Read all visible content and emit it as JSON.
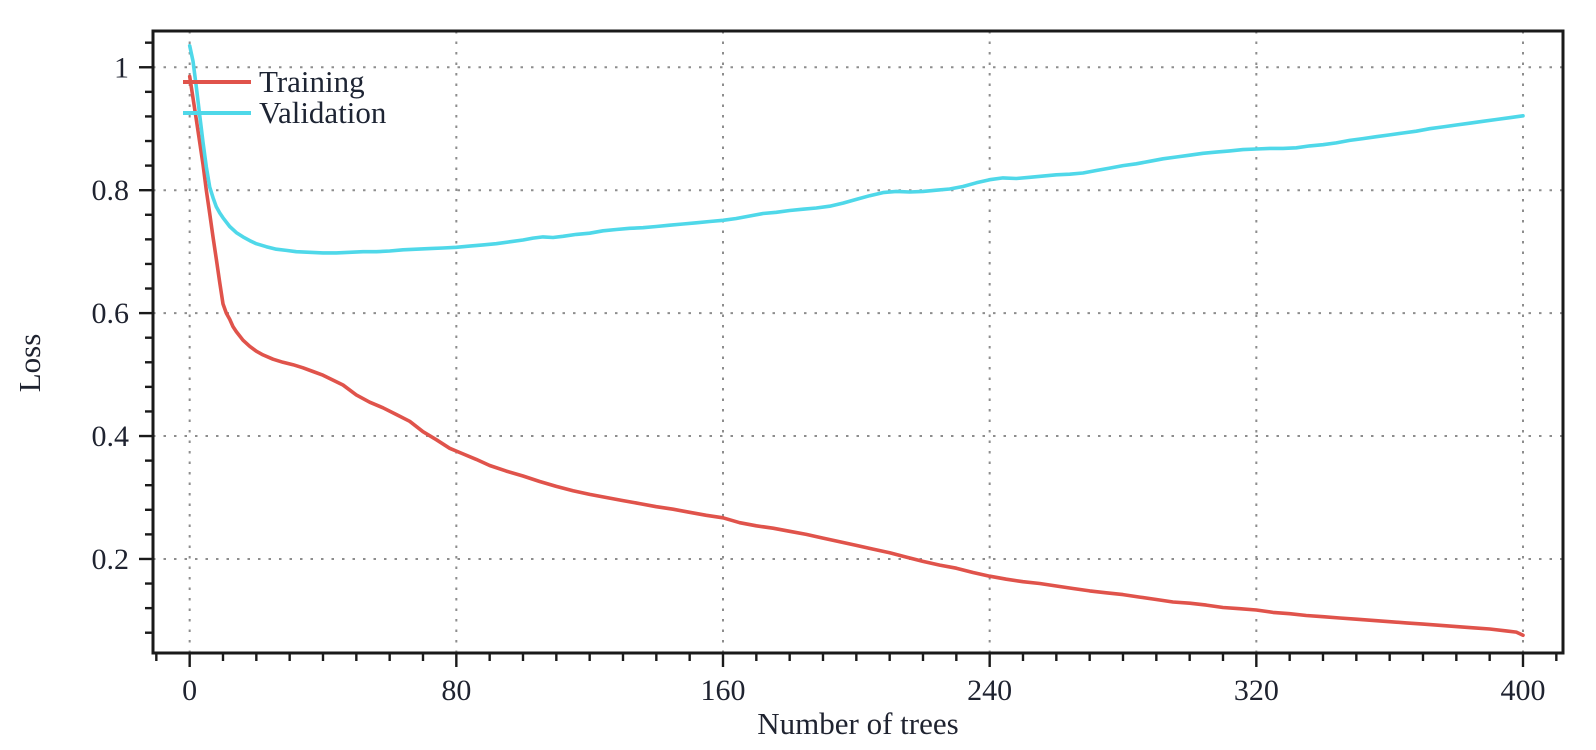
{
  "chart_data": {
    "type": "line",
    "title": "",
    "xlabel": "Number of trees",
    "ylabel": "Loss",
    "xlim": [
      -11,
      412
    ],
    "ylim": [
      0.047,
      1.059
    ],
    "x_major_ticks": [
      0,
      80,
      160,
      240,
      320,
      400
    ],
    "x_tick_labels": [
      "0",
      "80",
      "160",
      "240",
      "320",
      "400"
    ],
    "x_minor_step": 10,
    "y_major_ticks": [
      0.2,
      0.4,
      0.6,
      0.8,
      1.0
    ],
    "y_tick_labels": [
      "0.2",
      "0.4",
      "0.6",
      "0.8",
      "1"
    ],
    "y_minor_step": 0.04,
    "grid": {
      "style": "dotted",
      "color": "#8d8d8d",
      "at_x": [
        0,
        80,
        160,
        240,
        320,
        400
      ],
      "at_y": [
        0.2,
        0.4,
        0.6,
        0.8,
        1.0
      ]
    },
    "legend_position": "top-left-inside",
    "frame_color": "#1a1a1a",
    "series": [
      {
        "name": "Training",
        "color": "#e0534b",
        "points": [
          [
            0,
            0.985
          ],
          [
            1,
            0.95
          ],
          [
            2,
            0.915
          ],
          [
            3,
            0.878
          ],
          [
            4,
            0.842
          ],
          [
            5,
            0.8
          ],
          [
            6,
            0.762
          ],
          [
            7,
            0.724
          ],
          [
            8,
            0.688
          ],
          [
            9,
            0.65
          ],
          [
            10,
            0.615
          ],
          [
            11,
            0.6
          ],
          [
            12,
            0.59
          ],
          [
            13,
            0.578
          ],
          [
            14,
            0.57
          ],
          [
            16,
            0.556
          ],
          [
            18,
            0.546
          ],
          [
            20,
            0.538
          ],
          [
            22,
            0.532
          ],
          [
            25,
            0.525
          ],
          [
            28,
            0.52
          ],
          [
            31,
            0.516
          ],
          [
            34,
            0.511
          ],
          [
            37,
            0.505
          ],
          [
            40,
            0.499
          ],
          [
            43,
            0.491
          ],
          [
            46,
            0.483
          ],
          [
            50,
            0.467
          ],
          [
            54,
            0.455
          ],
          [
            58,
            0.446
          ],
          [
            62,
            0.435
          ],
          [
            66,
            0.424
          ],
          [
            70,
            0.407
          ],
          [
            74,
            0.394
          ],
          [
            78,
            0.38
          ],
          [
            82,
            0.371
          ],
          [
            86,
            0.362
          ],
          [
            90,
            0.352
          ],
          [
            95,
            0.343
          ],
          [
            100,
            0.335
          ],
          [
            105,
            0.326
          ],
          [
            110,
            0.318
          ],
          [
            115,
            0.311
          ],
          [
            120,
            0.305
          ],
          [
            125,
            0.3
          ],
          [
            130,
            0.295
          ],
          [
            135,
            0.29
          ],
          [
            140,
            0.285
          ],
          [
            145,
            0.281
          ],
          [
            150,
            0.276
          ],
          [
            155,
            0.271
          ],
          [
            160,
            0.267
          ],
          [
            165,
            0.259
          ],
          [
            170,
            0.254
          ],
          [
            175,
            0.25
          ],
          [
            180,
            0.245
          ],
          [
            185,
            0.24
          ],
          [
            190,
            0.234
          ],
          [
            195,
            0.228
          ],
          [
            200,
            0.222
          ],
          [
            205,
            0.216
          ],
          [
            210,
            0.21
          ],
          [
            215,
            0.203
          ],
          [
            220,
            0.196
          ],
          [
            225,
            0.19
          ],
          [
            230,
            0.185
          ],
          [
            235,
            0.178
          ],
          [
            240,
            0.172
          ],
          [
            245,
            0.167
          ],
          [
            250,
            0.163
          ],
          [
            255,
            0.16
          ],
          [
            260,
            0.156
          ],
          [
            265,
            0.152
          ],
          [
            270,
            0.148
          ],
          [
            275,
            0.145
          ],
          [
            280,
            0.142
          ],
          [
            285,
            0.138
          ],
          [
            290,
            0.134
          ],
          [
            295,
            0.13
          ],
          [
            300,
            0.128
          ],
          [
            305,
            0.125
          ],
          [
            310,
            0.121
          ],
          [
            315,
            0.119
          ],
          [
            320,
            0.117
          ],
          [
            325,
            0.113
          ],
          [
            330,
            0.111
          ],
          [
            335,
            0.108
          ],
          [
            340,
            0.106
          ],
          [
            345,
            0.104
          ],
          [
            350,
            0.102
          ],
          [
            355,
            0.1
          ],
          [
            360,
            0.098
          ],
          [
            365,
            0.096
          ],
          [
            370,
            0.094
          ],
          [
            375,
            0.092
          ],
          [
            380,
            0.09
          ],
          [
            385,
            0.088
          ],
          [
            390,
            0.086
          ],
          [
            395,
            0.083
          ],
          [
            398,
            0.081
          ],
          [
            400,
            0.076
          ]
        ]
      },
      {
        "name": "Validation",
        "color": "#4fd8e9",
        "points": [
          [
            0,
            1.035
          ],
          [
            1,
            1.01
          ],
          [
            2,
            0.968
          ],
          [
            3,
            0.922
          ],
          [
            4,
            0.878
          ],
          [
            5,
            0.838
          ],
          [
            6,
            0.805
          ],
          [
            7,
            0.788
          ],
          [
            8,
            0.773
          ],
          [
            9,
            0.763
          ],
          [
            10,
            0.755
          ],
          [
            12,
            0.741
          ],
          [
            14,
            0.731
          ],
          [
            16,
            0.724
          ],
          [
            18,
            0.718
          ],
          [
            20,
            0.713
          ],
          [
            23,
            0.708
          ],
          [
            26,
            0.704
          ],
          [
            29,
            0.702
          ],
          [
            32,
            0.7
          ],
          [
            36,
            0.699
          ],
          [
            40,
            0.698
          ],
          [
            44,
            0.698
          ],
          [
            48,
            0.699
          ],
          [
            52,
            0.7
          ],
          [
            56,
            0.7
          ],
          [
            60,
            0.701
          ],
          [
            64,
            0.703
          ],
          [
            68,
            0.704
          ],
          [
            72,
            0.705
          ],
          [
            76,
            0.706
          ],
          [
            80,
            0.707
          ],
          [
            84,
            0.709
          ],
          [
            88,
            0.711
          ],
          [
            92,
            0.713
          ],
          [
            96,
            0.716
          ],
          [
            100,
            0.719
          ],
          [
            103,
            0.722
          ],
          [
            106,
            0.724
          ],
          [
            109,
            0.723
          ],
          [
            112,
            0.725
          ],
          [
            116,
            0.728
          ],
          [
            120,
            0.73
          ],
          [
            124,
            0.734
          ],
          [
            128,
            0.736
          ],
          [
            132,
            0.738
          ],
          [
            136,
            0.739
          ],
          [
            140,
            0.741
          ],
          [
            144,
            0.743
          ],
          [
            148,
            0.745
          ],
          [
            152,
            0.747
          ],
          [
            156,
            0.749
          ],
          [
            160,
            0.751
          ],
          [
            164,
            0.754
          ],
          [
            168,
            0.758
          ],
          [
            172,
            0.762
          ],
          [
            176,
            0.764
          ],
          [
            180,
            0.767
          ],
          [
            184,
            0.769
          ],
          [
            188,
            0.771
          ],
          [
            192,
            0.774
          ],
          [
            196,
            0.779
          ],
          [
            200,
            0.785
          ],
          [
            204,
            0.791
          ],
          [
            208,
            0.796
          ],
          [
            212,
            0.798
          ],
          [
            216,
            0.797
          ],
          [
            220,
            0.798
          ],
          [
            224,
            0.8
          ],
          [
            228,
            0.802
          ],
          [
            232,
            0.806
          ],
          [
            236,
            0.812
          ],
          [
            240,
            0.817
          ],
          [
            244,
            0.82
          ],
          [
            248,
            0.819
          ],
          [
            252,
            0.821
          ],
          [
            256,
            0.823
          ],
          [
            260,
            0.825
          ],
          [
            264,
            0.826
          ],
          [
            268,
            0.828
          ],
          [
            272,
            0.832
          ],
          [
            276,
            0.836
          ],
          [
            280,
            0.84
          ],
          [
            284,
            0.843
          ],
          [
            288,
            0.847
          ],
          [
            292,
            0.851
          ],
          [
            296,
            0.854
          ],
          [
            300,
            0.857
          ],
          [
            304,
            0.86
          ],
          [
            308,
            0.862
          ],
          [
            312,
            0.864
          ],
          [
            316,
            0.866
          ],
          [
            320,
            0.867
          ],
          [
            324,
            0.868
          ],
          [
            328,
            0.868
          ],
          [
            332,
            0.869
          ],
          [
            336,
            0.872
          ],
          [
            340,
            0.874
          ],
          [
            344,
            0.877
          ],
          [
            348,
            0.881
          ],
          [
            352,
            0.884
          ],
          [
            356,
            0.887
          ],
          [
            360,
            0.89
          ],
          [
            364,
            0.893
          ],
          [
            368,
            0.896
          ],
          [
            372,
            0.9
          ],
          [
            376,
            0.903
          ],
          [
            380,
            0.906
          ],
          [
            384,
            0.909
          ],
          [
            388,
            0.912
          ],
          [
            392,
            0.915
          ],
          [
            396,
            0.918
          ],
          [
            400,
            0.921
          ]
        ]
      }
    ]
  },
  "axes": {
    "x_label": "Number of trees",
    "y_label": "Loss",
    "tick_label_color": "#1f2330"
  },
  "legend": {
    "items": [
      {
        "label": "Training",
        "color": "#e0534b"
      },
      {
        "label": "Validation",
        "color": "#4fd8e9"
      }
    ]
  }
}
